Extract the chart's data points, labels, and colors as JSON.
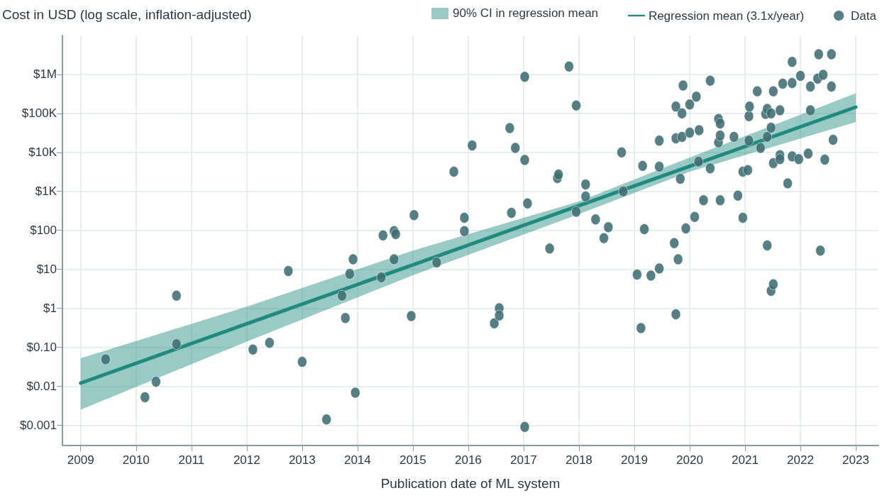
{
  "chart_data": {
    "type": "scatter",
    "ylabel": "Cost in USD (log scale, inflation-adjusted)",
    "xlabel": "Publication date of ML system",
    "log": "y",
    "grid": true,
    "legend": "top right",
    "annotations": [
      "90% CI in regression mean"
    ],
    "xlim": [
      2008.67,
      2023.41
    ],
    "xticks": [
      2009,
      2010,
      2011,
      2012,
      2013,
      2014,
      2015,
      2016,
      2017,
      2018,
      2019,
      2020,
      2021,
      2022,
      2023
    ],
    "ylim": [
      0.0003,
      10000000
    ],
    "yticks": [
      {
        "value": 0.001,
        "label": "$0.001"
      },
      {
        "value": 0.01,
        "label": "$0.01"
      },
      {
        "value": 0.1,
        "label": "$0.10"
      },
      {
        "value": 1,
        "label": "$1"
      },
      {
        "value": 10,
        "label": "$10"
      },
      {
        "value": 100,
        "label": "$100"
      },
      {
        "value": 1000,
        "label": "$1K"
      },
      {
        "value": 10000,
        "label": "$10K"
      },
      {
        "value": 100000,
        "label": "$100K"
      },
      {
        "value": 1000000,
        "label": "$1M"
      }
    ],
    "series": [
      {
        "name": "Regression mean (3.1x/year)",
        "type": "line",
        "color": "#1e8a80",
        "marker": "none",
        "x": [
          2009,
          2012,
          2015,
          2018,
          2020,
          2023
        ],
        "values": [
          0.012,
          0.4,
          13,
          430,
          4400,
          145000
        ],
        "lower": [
          0.0025,
          0.14,
          7,
          260,
          3200,
          60000
        ],
        "upper": [
          0.052,
          1.1,
          30,
          550,
          7400,
          330000
        ]
      },
      {
        "name": "Data",
        "color": "#3e6d73",
        "marker": "circle",
        "x": [
          2009.45,
          2010.16,
          2010.36,
          2010.73,
          2010.73,
          2012.11,
          2012.41,
          2012.75,
          2013.0,
          2013.44,
          2013.72,
          2013.78,
          2013.86,
          2013.92,
          2013.96,
          2014.43,
          2014.46,
          2014.66,
          2014.69,
          2014.66,
          2014.97,
          2015.02,
          2015.43,
          2015.74,
          2015.93,
          2015.93,
          2016.07,
          2016.47,
          2016.56,
          2016.56,
          2016.75,
          2016.78,
          2016.85,
          2017.02,
          2017.02,
          2017.02,
          2017.07,
          2017.47,
          2017.61,
          2017.63,
          2017.82,
          2017.95,
          2017.95,
          2018.12,
          2018.12,
          2018.3,
          2018.45,
          2018.53,
          2018.77,
          2018.8,
          2019.05,
          2019.12,
          2019.15,
          2019.18,
          2019.3,
          2019.45,
          2019.45,
          2019.45,
          2019.72,
          2019.75,
          2019.75,
          2019.75,
          2019.79,
          2019.83,
          2019.86,
          2019.86,
          2019.88,
          2019.93,
          2020.0,
          2020.0,
          2020.09,
          2020.12,
          2020.16,
          2020.17,
          2020.25,
          2020.37,
          2020.37,
          2020.52,
          2020.55,
          2020.52,
          2020.55,
          2020.55,
          2020.8,
          2020.87,
          2020.96,
          2020.96,
          2021.05,
          2021.07,
          2021.08,
          2021.07,
          2021.22,
          2021.28,
          2021.37,
          2021.4,
          2021.47,
          2021.4,
          2021.47,
          2021.4,
          2021.51,
          2021.51,
          2021.47,
          2021.51,
          2021.63,
          2021.63,
          2021.63,
          2021.68,
          2021.77,
          2021.85,
          2021.85,
          2021.85,
          2021.97,
          2022.0,
          2022.14,
          2022.18,
          2022.18,
          2022.31,
          2022.33,
          2022.36,
          2022.41,
          2022.44,
          2022.56,
          2022.56,
          2022.59
        ],
        "values": [
          0.049,
          0.0052,
          0.013,
          2.1,
          0.12,
          0.087,
          0.13,
          9,
          0.042,
          0.0014,
          2.1,
          0.56,
          7.6,
          18,
          0.0068,
          6.2,
          74,
          95,
          80,
          18,
          0.63,
          245,
          15,
          3200,
          210,
          95,
          15000,
          0.41,
          1,
          0.65,
          42000,
          280,
          13000,
          870000,
          6400,
          0.0009,
          490,
          34,
          2200,
          2700,
          1600000,
          160000,
          300,
          1500,
          740,
          190,
          63,
          120,
          10000,
          1000,
          7.3,
          0.31,
          4500,
          107,
          6.9,
          4300,
          20000,
          10.5,
          47,
          0.7,
          23000,
          150000,
          18,
          2100,
          100000,
          25000,
          520000,
          112,
          170000,
          32000,
          220,
          270000,
          5800,
          37000,
          590,
          690000,
          3900,
          72000,
          55000,
          18000,
          27000,
          590,
          25000,
          780,
          210,
          3200,
          3500,
          85000,
          150000,
          20000,
          370000,
          13000,
          97000,
          130000,
          100000,
          25000,
          43000,
          41,
          370000,
          5300,
          2.8,
          4.1,
          120000,
          8500,
          6700,
          580000,
          1600,
          2100000,
          600000,
          7900,
          6700,
          920000,
          9300,
          490000,
          120000,
          780000,
          3300000,
          30,
          980000,
          6500,
          490000,
          3300000,
          21000
        ]
      }
    ]
  }
}
